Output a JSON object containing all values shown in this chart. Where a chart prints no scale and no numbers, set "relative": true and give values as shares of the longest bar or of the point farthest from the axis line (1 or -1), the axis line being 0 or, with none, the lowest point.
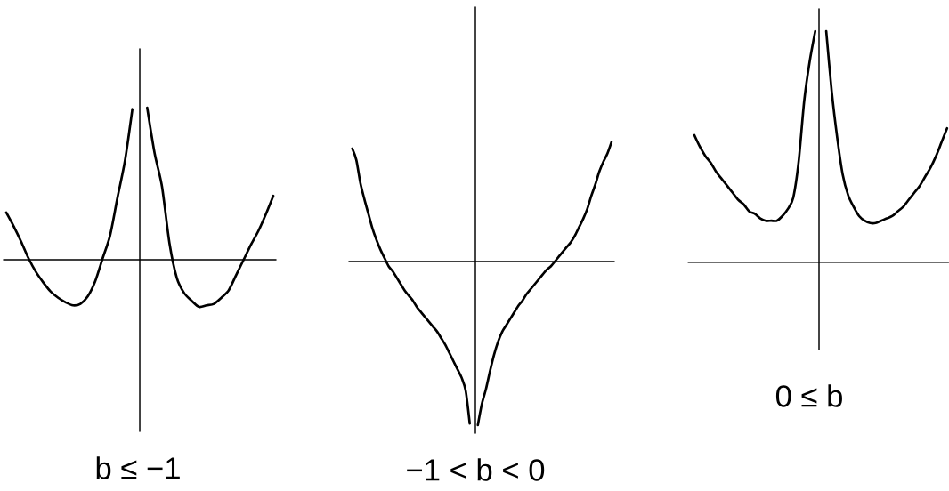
{
  "chart_data": [
    {
      "type": "line",
      "relative": true,
      "xlabel": "b ≤ −1",
      "categories": [
        null,
        null,
        null,
        null,
        null,
        null,
        null,
        null,
        null,
        null,
        null,
        null,
        null,
        null,
        null,
        null,
        null,
        null,
        null,
        null,
        null,
        null,
        null,
        null,
        null,
        null,
        null,
        null,
        null,
        null,
        null,
        null,
        null,
        null,
        null,
        null,
        null
      ],
      "series": [
        {
          "color": "#000000",
          "values": [
            0.31,
            0.22,
            0.12,
            0.01,
            -0.08,
            -0.15,
            -0.21,
            -0.25,
            -0.28,
            -0.3,
            -0.29,
            -0.24,
            -0.14,
            0.01,
            0.16,
            0.41,
            0.65,
            0.99,
            null,
            null,
            null,
            null,
            null,
            null,
            null,
            null,
            null,
            null,
            null,
            null,
            null,
            null,
            null,
            null,
            null,
            null,
            null
          ]
        },
        {
          "color": "#000000",
          "values": [
            null,
            null,
            null,
            null,
            null,
            null,
            null,
            null,
            null,
            null,
            null,
            null,
            null,
            null,
            null,
            null,
            null,
            null,
            null,
            1.0,
            0.7,
            0.48,
            0.11,
            -0.12,
            -0.22,
            -0.27,
            -0.31,
            -0.3,
            -0.29,
            -0.25,
            -0.2,
            -0.1,
            0.0,
            0.1,
            0.19,
            0.3,
            0.42
          ]
        }
      ]
    },
    {
      "type": "line",
      "relative": true,
      "xlabel": "−1 < b < 0",
      "categories": [
        null,
        null,
        null,
        null,
        null,
        null,
        null,
        null,
        null,
        null,
        null,
        null,
        null,
        null,
        null,
        null,
        null,
        null,
        null,
        null,
        null,
        null,
        null,
        null,
        null,
        null,
        null,
        null,
        null,
        null,
        null,
        null,
        null,
        null,
        null,
        null,
        null,
        null,
        null,
        null,
        null,
        null,
        null,
        null,
        null,
        null,
        null,
        null,
        null,
        null,
        null,
        null,
        null,
        null,
        null,
        null,
        null,
        null,
        null,
        null,
        null,
        null,
        null,
        null,
        null
      ],
      "series": [
        {
          "color": "#000000",
          "values": [
            0.69,
            0.62,
            0.48,
            0.38,
            0.29,
            0.2,
            0.13,
            0.07,
            0.02,
            -0.03,
            -0.06,
            -0.1,
            -0.14,
            -0.18,
            -0.21,
            -0.24,
            -0.28,
            -0.31,
            -0.34,
            -0.37,
            -0.4,
            -0.43,
            -0.47,
            -0.51,
            -0.56,
            -0.61,
            -0.66,
            -0.71,
            -0.79,
            -0.99,
            null,
            null,
            null,
            null,
            null,
            null,
            null,
            null,
            null,
            null,
            null,
            null,
            null,
            null,
            null,
            null,
            null,
            null,
            null,
            null,
            null,
            null,
            null,
            null,
            null,
            null,
            null,
            null,
            null,
            null,
            null,
            null,
            null,
            null,
            null
          ]
        },
        {
          "color": "#000000",
          "values": [
            null,
            null,
            null,
            null,
            null,
            null,
            null,
            null,
            null,
            null,
            null,
            null,
            null,
            null,
            null,
            null,
            null,
            null,
            null,
            null,
            null,
            null,
            null,
            null,
            null,
            null,
            null,
            null,
            null,
            null,
            null,
            -1.0,
            -0.87,
            -0.78,
            -0.67,
            -0.57,
            -0.49,
            -0.43,
            -0.39,
            -0.35,
            -0.31,
            -0.27,
            -0.24,
            -0.2,
            -0.17,
            -0.14,
            -0.11,
            -0.08,
            -0.05,
            -0.03,
            0.0,
            0.03,
            0.06,
            0.09,
            0.12,
            0.16,
            0.21,
            0.26,
            0.32,
            0.4,
            0.47,
            0.55,
            0.61,
            0.66,
            0.73
          ]
        }
      ]
    },
    {
      "type": "line",
      "relative": true,
      "xlabel": "0 ≤ b",
      "categories": [
        null,
        null,
        null,
        null,
        null,
        null,
        null,
        null,
        null,
        null,
        null,
        null,
        null,
        null,
        null,
        null,
        null,
        null,
        null,
        null,
        null,
        null,
        null,
        null,
        null,
        null,
        null,
        null,
        null,
        null,
        null,
        null,
        null,
        null,
        null,
        null,
        null,
        null,
        null,
        null,
        null,
        null,
        null,
        null,
        null,
        null,
        null
      ],
      "series": [
        {
          "color": "#000000",
          "values": [
            0.55,
            0.5,
            0.46,
            0.43,
            0.39,
            0.36,
            0.33,
            0.3,
            0.27,
            0.25,
            0.22,
            0.21,
            0.19,
            0.18,
            0.18,
            0.18,
            0.2,
            0.23,
            0.28,
            0.44,
            0.7,
            0.87,
            1.0,
            null,
            null,
            null,
            null,
            null,
            null,
            null,
            null,
            null,
            null,
            null,
            null,
            null,
            null,
            null,
            null,
            null,
            null,
            null,
            null,
            null,
            null,
            null,
            null
          ]
        },
        {
          "color": "#000000",
          "values": [
            null,
            null,
            null,
            null,
            null,
            null,
            null,
            null,
            null,
            null,
            null,
            null,
            null,
            null,
            null,
            null,
            null,
            null,
            null,
            null,
            null,
            null,
            null,
            null,
            1.0,
            0.74,
            0.54,
            0.38,
            0.29,
            0.24,
            0.2,
            0.18,
            0.17,
            0.17,
            0.18,
            0.19,
            0.2,
            0.22,
            0.24,
            0.27,
            0.3,
            0.33,
            0.37,
            0.41,
            0.46,
            0.52,
            0.58
          ]
        }
      ]
    }
  ]
}
